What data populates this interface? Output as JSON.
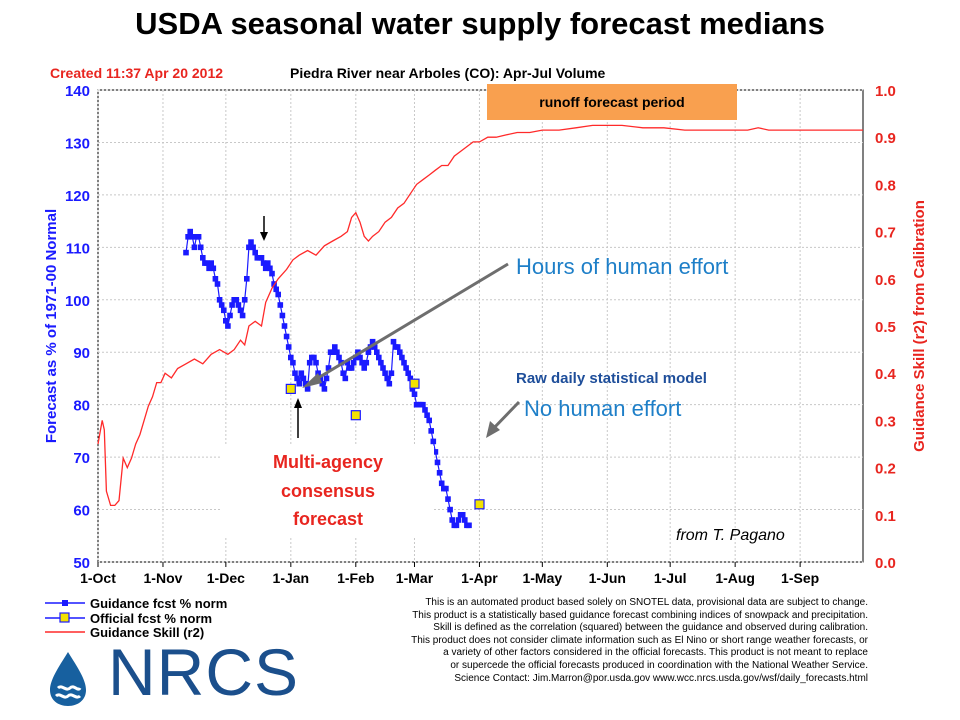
{
  "title": "USDA seasonal water supply forecast medians",
  "created": "Created 11:37 Apr 20 2012",
  "subtitle": "Piedra River near Arboles (CO): Apr-Jul Volume",
  "runoff_label": "runoff forecast period",
  "annotations": {
    "human_effort": "Hours of human effort",
    "raw_model": "Raw daily statistical model",
    "no_human": "No human effort",
    "consensus_1": "Multi-agency",
    "consensus_2": "consensus",
    "consensus_3": "forecast",
    "credit": "from T. Pagano"
  },
  "legend": [
    {
      "label": "Guidance fcst  % norm",
      "color": "#1a1aff"
    },
    {
      "label": "Official fcst  %  norm",
      "color": "#f2e200"
    },
    {
      "label": "Guidance Skill (r2)",
      "color": "#ff2a2a"
    }
  ],
  "disclaimer": [
    "This is an automated product based solely on SNOTEL data, provisional data are subject to change.",
    "This product is a statistically based guidance forecast combining indices of snowpack and precipitation.",
    "Skill is defined as the correlation (squared) between the guidance and observed during calibration.",
    "This product does not consider climate information such as El Nino or short range weather forecasts, or",
    "a variety of other factors considered in the official forecasts. This product is not meant to replace",
    "or supercede the official forecasts produced in coordination with the National Weather Service.",
    "Science Contact: Jim.Marron@por.usda.gov www.wcc.nrcs.usda.gov/wsf/daily_forecasts.html"
  ],
  "logo": "NRCS",
  "chart_data": {
    "type": "line",
    "xlabel": "",
    "ylabel": "Forecast as % of 1971-00 Normal",
    "y2label": "Guidance Skill (r2) from Calibration",
    "x_ticks": [
      "1-Oct",
      "1-Nov",
      "1-Dec",
      "1-Jan",
      "1-Feb",
      "1-Mar",
      "1-Apr",
      "1-May",
      "1-Jun",
      "1-Jul",
      "1-Aug",
      "1-Sep"
    ],
    "x_tick_days": [
      0,
      31,
      61,
      92,
      123,
      151,
      182,
      212,
      243,
      273,
      304,
      335
    ],
    "x_domain_days": [
      0,
      365
    ],
    "ylim": [
      50,
      140
    ],
    "y_ticks": [
      "50",
      "60",
      "70",
      "80",
      "90",
      "100",
      "110",
      "120",
      "130",
      "140"
    ],
    "y2lim": [
      0,
      1
    ],
    "y2_ticks": [
      "0.0",
      "0.1",
      "0.2",
      "0.3",
      "0.4",
      "0.5",
      "0.6",
      "0.7",
      "0.8",
      "0.9",
      "1.0"
    ],
    "series": [
      {
        "name": "Guidance fcst  % norm",
        "axis": "left",
        "color": "#1a1aff",
        "points": [
          [
            42,
            109
          ],
          [
            43,
            112
          ],
          [
            44,
            113
          ],
          [
            45,
            112
          ],
          [
            46,
            110
          ],
          [
            47,
            112
          ],
          [
            48,
            112
          ],
          [
            49,
            110
          ],
          [
            50,
            108
          ],
          [
            51,
            107
          ],
          [
            52,
            107
          ],
          [
            53,
            106
          ],
          [
            54,
            107
          ],
          [
            55,
            106
          ],
          [
            56,
            104
          ],
          [
            57,
            103
          ],
          [
            58,
            100
          ],
          [
            59,
            99
          ],
          [
            60,
            98
          ],
          [
            61,
            96
          ],
          [
            62,
            95
          ],
          [
            63,
            97
          ],
          [
            64,
            99
          ],
          [
            65,
            100
          ],
          [
            66,
            100
          ],
          [
            67,
            99
          ],
          [
            68,
            98
          ],
          [
            69,
            97
          ],
          [
            70,
            100
          ],
          [
            71,
            104
          ],
          [
            72,
            110
          ],
          [
            73,
            111
          ],
          [
            74,
            110
          ],
          [
            75,
            109
          ],
          [
            76,
            108
          ],
          [
            77,
            108
          ],
          [
            78,
            108
          ],
          [
            79,
            107
          ],
          [
            80,
            106
          ],
          [
            81,
            107
          ],
          [
            82,
            106
          ],
          [
            83,
            105
          ],
          [
            84,
            103
          ],
          [
            85,
            102
          ],
          [
            86,
            101
          ],
          [
            87,
            99
          ],
          [
            88,
            97
          ],
          [
            89,
            95
          ],
          [
            90,
            93
          ],
          [
            91,
            91
          ],
          [
            92,
            89
          ],
          [
            93,
            88
          ],
          [
            94,
            86
          ],
          [
            95,
            85
          ],
          [
            96,
            84
          ],
          [
            97,
            86
          ],
          [
            98,
            85
          ],
          [
            99,
            84
          ],
          [
            100,
            83
          ],
          [
            101,
            88
          ],
          [
            102,
            89
          ],
          [
            103,
            89
          ],
          [
            104,
            88
          ],
          [
            105,
            86
          ],
          [
            106,
            85
          ],
          [
            107,
            84
          ],
          [
            108,
            83
          ],
          [
            109,
            85
          ],
          [
            110,
            87
          ],
          [
            111,
            90
          ],
          [
            112,
            90
          ],
          [
            113,
            91
          ],
          [
            114,
            90
          ],
          [
            115,
            89
          ],
          [
            116,
            88
          ],
          [
            117,
            86
          ],
          [
            118,
            85
          ],
          [
            119,
            88
          ],
          [
            120,
            87
          ],
          [
            121,
            87
          ],
          [
            122,
            88
          ],
          [
            123,
            89
          ],
          [
            124,
            90
          ],
          [
            125,
            89
          ],
          [
            126,
            88
          ],
          [
            127,
            87
          ],
          [
            128,
            88
          ],
          [
            129,
            90
          ],
          [
            130,
            91
          ],
          [
            131,
            92
          ],
          [
            132,
            91
          ],
          [
            133,
            90
          ],
          [
            134,
            89
          ],
          [
            135,
            88
          ],
          [
            136,
            87
          ],
          [
            137,
            86
          ],
          [
            138,
            85
          ],
          [
            139,
            84
          ],
          [
            140,
            86
          ],
          [
            141,
            92
          ],
          [
            142,
            91
          ],
          [
            143,
            91
          ],
          [
            144,
            90
          ],
          [
            145,
            89
          ],
          [
            146,
            88
          ],
          [
            147,
            87
          ],
          [
            148,
            86
          ],
          [
            149,
            85
          ],
          [
            150,
            83
          ],
          [
            151,
            82
          ],
          [
            152,
            80
          ],
          [
            153,
            80
          ],
          [
            154,
            80
          ],
          [
            155,
            80
          ],
          [
            156,
            79
          ],
          [
            157,
            78
          ],
          [
            158,
            77
          ],
          [
            159,
            75
          ],
          [
            160,
            73
          ],
          [
            161,
            71
          ],
          [
            162,
            69
          ],
          [
            163,
            67
          ],
          [
            164,
            65
          ],
          [
            165,
            64
          ],
          [
            166,
            64
          ],
          [
            167,
            62
          ],
          [
            168,
            60
          ],
          [
            169,
            58
          ],
          [
            170,
            57
          ],
          [
            171,
            57
          ],
          [
            172,
            58
          ],
          [
            173,
            59
          ],
          [
            174,
            59
          ],
          [
            175,
            58
          ],
          [
            176,
            57
          ],
          [
            177,
            57
          ]
        ]
      },
      {
        "name": "Official fcst  %  norm",
        "axis": "left",
        "color": "#f2e200",
        "points": [
          [
            92,
            83
          ],
          [
            123,
            78
          ],
          [
            151,
            84
          ],
          [
            182,
            61
          ]
        ]
      },
      {
        "name": "Guidance Skill (r2)",
        "axis": "right",
        "color": "#ff2a2a",
        "points": [
          [
            0,
            0.25
          ],
          [
            2,
            0.3
          ],
          [
            3,
            0.28
          ],
          [
            4,
            0.15
          ],
          [
            6,
            0.12
          ],
          [
            8,
            0.12
          ],
          [
            10,
            0.13
          ],
          [
            12,
            0.22
          ],
          [
            14,
            0.2
          ],
          [
            16,
            0.22
          ],
          [
            18,
            0.25
          ],
          [
            20,
            0.27
          ],
          [
            22,
            0.3
          ],
          [
            24,
            0.33
          ],
          [
            26,
            0.35
          ],
          [
            28,
            0.38
          ],
          [
            30,
            0.38
          ],
          [
            32,
            0.4
          ],
          [
            35,
            0.39
          ],
          [
            38,
            0.41
          ],
          [
            42,
            0.42
          ],
          [
            46,
            0.43
          ],
          [
            50,
            0.42
          ],
          [
            54,
            0.44
          ],
          [
            58,
            0.45
          ],
          [
            62,
            0.44
          ],
          [
            65,
            0.45
          ],
          [
            68,
            0.47
          ],
          [
            70,
            0.46
          ],
          [
            72,
            0.5
          ],
          [
            75,
            0.51
          ],
          [
            78,
            0.5
          ],
          [
            80,
            0.55
          ],
          [
            83,
            0.58
          ],
          [
            86,
            0.6
          ],
          [
            90,
            0.62
          ],
          [
            93,
            0.64
          ],
          [
            96,
            0.65
          ],
          [
            100,
            0.66
          ],
          [
            104,
            0.65
          ],
          [
            108,
            0.67
          ],
          [
            112,
            0.68
          ],
          [
            116,
            0.69
          ],
          [
            119,
            0.7
          ],
          [
            121,
            0.73
          ],
          [
            123,
            0.74
          ],
          [
            125,
            0.72
          ],
          [
            127,
            0.69
          ],
          [
            129,
            0.68
          ],
          [
            131,
            0.69
          ],
          [
            134,
            0.7
          ],
          [
            137,
            0.72
          ],
          [
            140,
            0.73
          ],
          [
            143,
            0.75
          ],
          [
            146,
            0.76
          ],
          [
            149,
            0.78
          ],
          [
            152,
            0.8
          ],
          [
            155,
            0.81
          ],
          [
            158,
            0.82
          ],
          [
            161,
            0.83
          ],
          [
            164,
            0.84
          ],
          [
            167,
            0.84
          ],
          [
            170,
            0.86
          ],
          [
            173,
            0.87
          ],
          [
            176,
            0.88
          ],
          [
            179,
            0.89
          ],
          [
            182,
            0.89
          ],
          [
            186,
            0.9
          ],
          [
            190,
            0.9
          ],
          [
            195,
            0.905
          ],
          [
            200,
            0.91
          ],
          [
            206,
            0.91
          ],
          [
            212,
            0.915
          ],
          [
            220,
            0.915
          ],
          [
            228,
            0.92
          ],
          [
            236,
            0.925
          ],
          [
            243,
            0.925
          ],
          [
            250,
            0.925
          ],
          [
            260,
            0.92
          ],
          [
            270,
            0.92
          ],
          [
            280,
            0.915
          ],
          [
            290,
            0.915
          ],
          [
            300,
            0.915
          ],
          [
            310,
            0.915
          ],
          [
            315,
            0.92
          ],
          [
            320,
            0.915
          ],
          [
            330,
            0.915
          ],
          [
            345,
            0.915
          ],
          [
            360,
            0.915
          ],
          [
            365,
            0.915
          ]
        ]
      }
    ]
  }
}
